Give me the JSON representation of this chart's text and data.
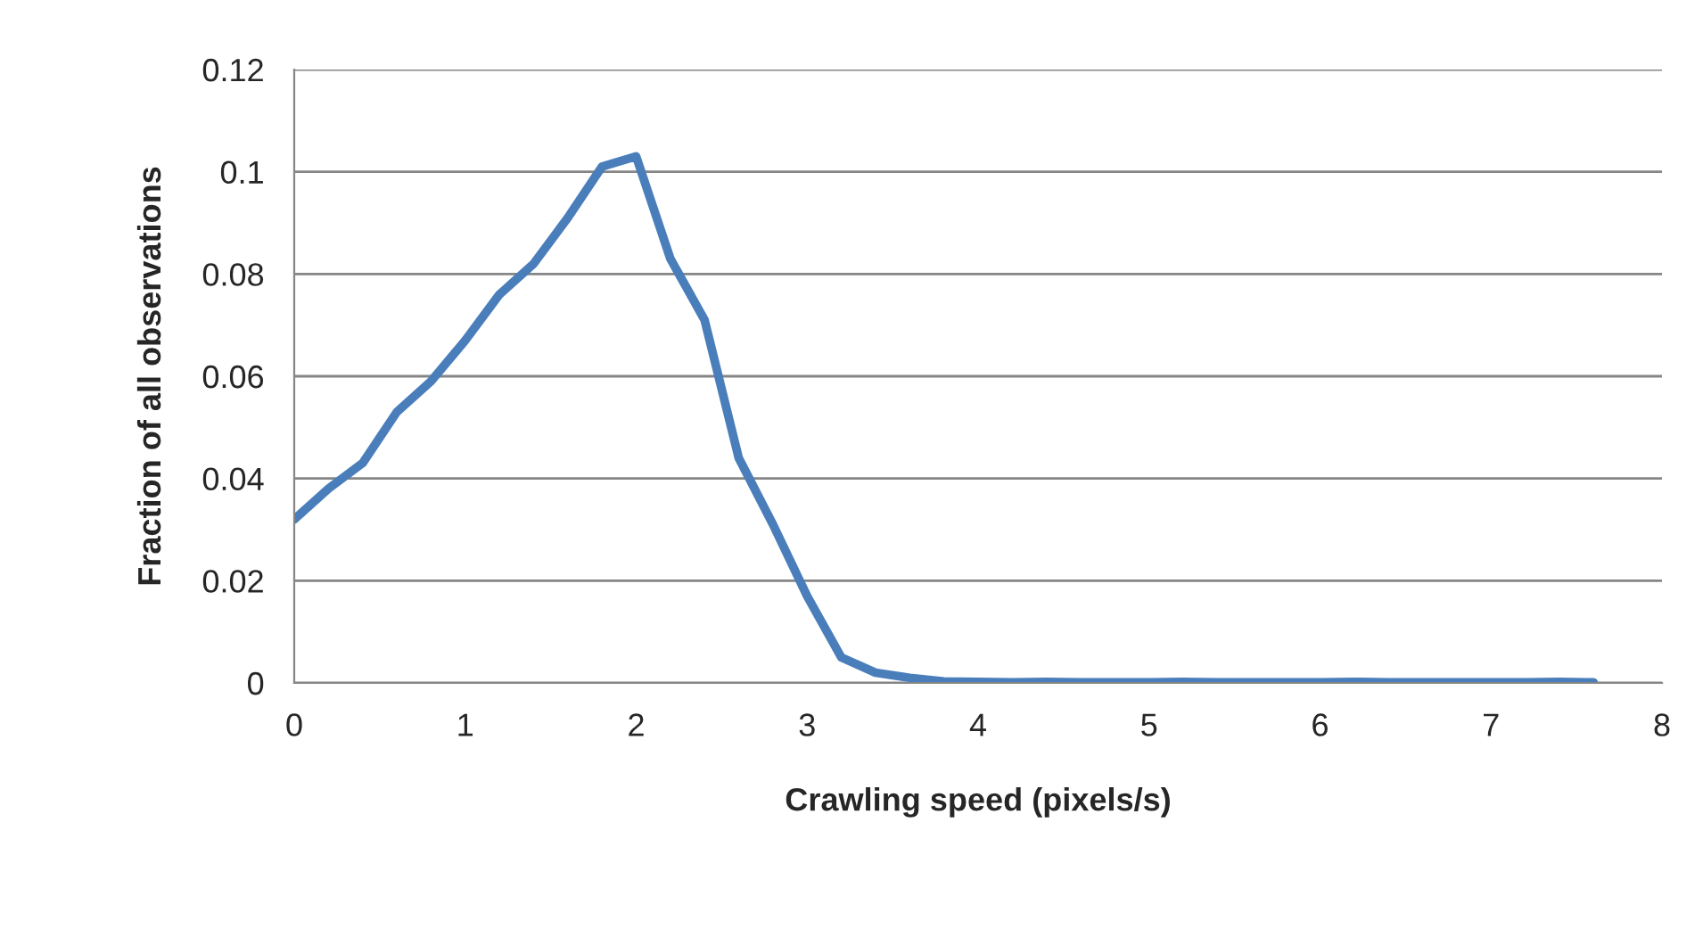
{
  "chart_data": {
    "type": "line",
    "xlabel": "Crawling speed (pixels/s)",
    "ylabel": "Fraction of all observations",
    "x": [
      0,
      0.2,
      0.4,
      0.6,
      0.8,
      1.0,
      1.2,
      1.4,
      1.6,
      1.8,
      2.0,
      2.2,
      2.4,
      2.6,
      2.8,
      3.0,
      3.2,
      3.4,
      3.6,
      3.8,
      4.0,
      4.2,
      4.4,
      4.6,
      4.8,
      5.0,
      5.2,
      5.4,
      5.6,
      5.8,
      6.0,
      6.2,
      6.4,
      6.6,
      6.8,
      7.0,
      7.2,
      7.4,
      7.6
    ],
    "series": [
      {
        "color": "#4a7ebb",
        "values": [
          0.032,
          0.038,
          0.043,
          0.053,
          0.059,
          0.067,
          0.076,
          0.082,
          0.091,
          0.101,
          0.103,
          0.083,
          0.071,
          0.044,
          0.031,
          0.017,
          0.005,
          0.002,
          0.001,
          0.0003,
          0.0002,
          0.0001,
          0.0002,
          0.0001,
          0.0001,
          0.0001,
          0.0002,
          0.0001,
          0.0001,
          0.0001,
          0.0001,
          0.0002,
          0.0001,
          0.0001,
          0.0001,
          0.0001,
          0.0001,
          0.0002,
          0.0001
        ]
      }
    ],
    "xlim": [
      0,
      8
    ],
    "xticks": [
      0,
      1,
      2,
      3,
      4,
      5,
      6,
      7,
      8
    ],
    "ylim": [
      0,
      0.12
    ],
    "yticks": [
      0,
      0.02,
      0.04,
      0.06,
      0.08,
      0.1,
      0.12
    ],
    "grid": "y",
    "marker": "none",
    "line_style": "solid"
  }
}
